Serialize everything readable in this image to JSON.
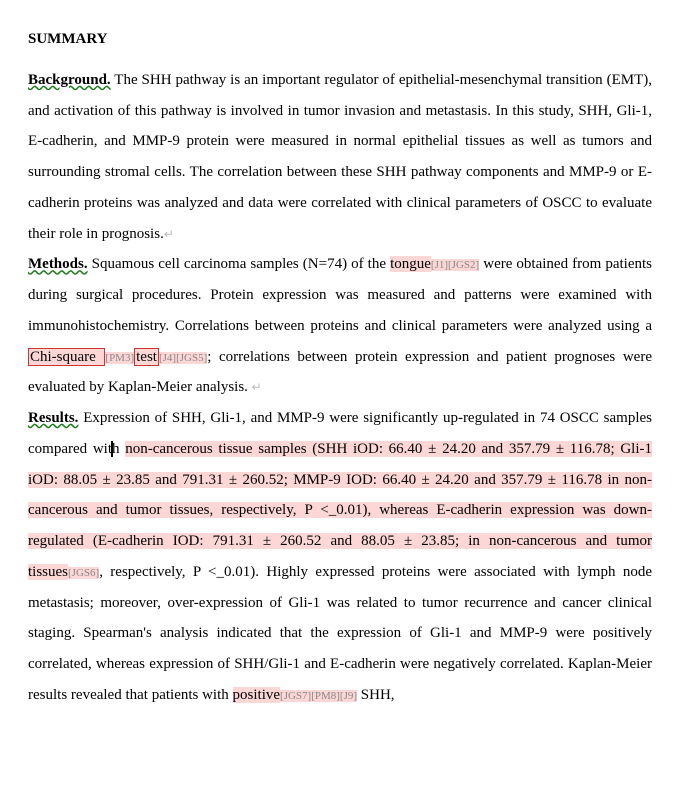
{
  "doc": {
    "title": "SUMMARY",
    "background": {
      "head": "Background.",
      "t1": " The SHH pathway is an important regulator of epithelial-mesenchymal transition (EMT), and activation of this pathway is involved in tumor invasion and metastasis. In this study, SHH, Gli-1, E-cadherin, and MMP-9 protein were measured in normal epithelial tissues as well as tumors and surrounding stromal cells. The correlation between these SHH pathway components and MMP-9 or E-cadherin proteins was analyzed and data were correlated with clinical parameters of OSCC to evaluate their role in prognosis."
    },
    "methods": {
      "head": "Methods.",
      "t1": " Squamous cell carcinoma samples (N=74) of the ",
      "hl1": "tongue",
      "tag1": "[J1][JGS2]",
      "t2": " were obtained from patients during surgical procedures. Protein expression was measured and patterns were examined with immunohistochemistry. Correlations between proteins and clinical parameters were analyzed using a ",
      "box1": "Chi-square ",
      "tag2": "[PM3]",
      "box2": "test",
      "tag3": "[J4][JGS5]",
      "t3": "; correlations between protein expression and patient prognoses were evaluated by Kaplan-Meier analysis. "
    },
    "results": {
      "head": "Results.",
      "t1": " Expression of SHH, Gli-1, and MMP-9 were significantly up-regulated in 74 OSCC samples compared with ",
      "hl1": "non-cancerous tissue samples (SHH iOD: 66.40 ± 24.20 and 357.79 ± 116.78; Gli-1 iOD: 88.05 ± 23.85 and 791.31 ± 260.52; MMP-9 IOD: 66.40 ± 24.20 and 357.79 ± 116.78 in non-cancerous and tumor tissues, respectively, P <_0.01), whereas E-cadherin expression was down-regulated (E-cadherin IOD: 791.31 ± 260.52 and 88.05 ± 23.85; in non-cancerous and tumor tissues",
      "tag1": "[JGS6]",
      "t2": ", respectively, P <_0.01). Highly expressed proteins were associated with lymph node metastasis; moreover, over-expression of Gli-1 was related to tumor recurrence and cancer clinical staging. Spearman's analysis indicated that the expression of Gli-1 and MMP-9 were positively correlated, whereas expression of SHH/Gli-1 and E-cadherin were negatively correlated. Kaplan-Meier results revealed that patients with ",
      "hl2": "positive",
      "tag2": "[JGS7][PM8][J9]",
      "t3": " SHH,"
    },
    "colors": {
      "highlight": "#fcd7d6",
      "commentBorder": "#c33",
      "wavyUnderline": "#1a7a1a",
      "tagText": "#888"
    },
    "typography": {
      "fontFamily": "Times New Roman",
      "fontSizePt": 12,
      "lineHeight": 2.05
    }
  }
}
